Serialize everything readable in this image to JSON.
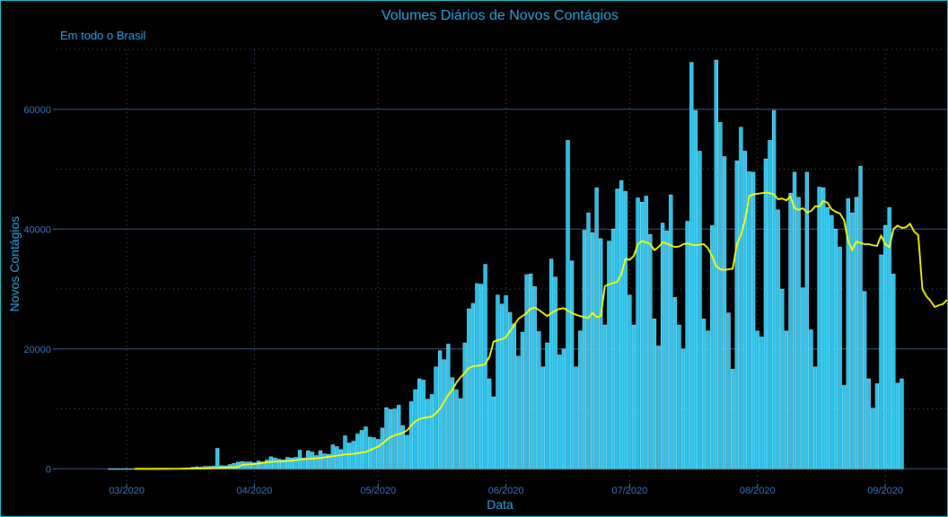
{
  "chart_data": {
    "type": "bar",
    "title": "Volumes Diários de Novos Contágios",
    "subtitle": "Em todo o Brasil",
    "xlabel": "Data",
    "ylabel": "Novos Contágios",
    "x_start": "2020-02-26",
    "ylim": [
      -2500,
      70000
    ],
    "x_ticks": [
      {
        "date": "2020-03-01",
        "label": "03/2020"
      },
      {
        "date": "2020-04-01",
        "label": "04/2020"
      },
      {
        "date": "2020-05-01",
        "label": "05/2020"
      },
      {
        "date": "2020-06-01",
        "label": "06/2020"
      },
      {
        "date": "2020-07-01",
        "label": "07/2020"
      },
      {
        "date": "2020-08-01",
        "label": "08/2020"
      },
      {
        "date": "2020-09-01",
        "label": "09/2020"
      }
    ],
    "y_ticks": [
      0,
      20000,
      40000,
      60000
    ],
    "grid": true,
    "colors": {
      "background": "#000000",
      "bar_fill": "#20c4ee",
      "bar_edge": "#9fe6ff",
      "moving_average": "#ffff00",
      "grid": "#3e5a8a",
      "text": "#2aa7e6",
      "tick": "#3b78c0"
    },
    "series": [
      {
        "type": "bar",
        "values": [
          1,
          0,
          0,
          1,
          1,
          0,
          4,
          0,
          5,
          6,
          5,
          21,
          18,
          27,
          32,
          47,
          55,
          86,
          110,
          148,
          241,
          328,
          256,
          386,
          376,
          425,
          3400,
          500,
          480,
          700,
          900,
          1100,
          1200,
          1130,
          1150,
          1000,
          1300,
          1150,
          1450,
          2000,
          1800,
          1600,
          1500,
          1900,
          1800,
          1900,
          3100,
          1800,
          3000,
          2800,
          2200,
          3000,
          2500,
          2400,
          4000,
          3700,
          3200,
          5500,
          4300,
          4600,
          5800,
          6400,
          7000,
          5300,
          5200,
          4900,
          6800,
          10200,
          9900,
          10000,
          10600,
          7200,
          5600,
          11200,
          13200,
          15000,
          14800,
          11600,
          12400,
          17000,
          19700,
          18200,
          20800,
          15200,
          13200,
          11700,
          21000,
          26700,
          27600,
          30900,
          30800,
          34100,
          15000,
          12000,
          29000,
          27500,
          28900,
          26100,
          24200,
          18800,
          22800,
          32400,
          32500,
          30400,
          22900,
          17000,
          21000,
          35000,
          32000,
          19000,
          20000,
          54800,
          34700,
          17000,
          23000,
          39800,
          42700,
          39400,
          46900,
          38400,
          24000,
          38000,
          40000,
          46700,
          48100,
          46300,
          29000,
          24000,
          45200,
          44500,
          45500,
          39100,
          25000,
          20500,
          41000,
          39700,
          45700,
          28600,
          24000,
          20000,
          41300,
          67800,
          59800,
          53000,
          25000,
          23000,
          40600,
          68200,
          57800,
          52100,
          26000,
          16600,
          51400,
          57000,
          53000,
          49600,
          49500,
          23000,
          22000,
          51700,
          54800,
          59800,
          43200,
          30000,
          23000,
          46000,
          49500,
          45300,
          30200,
          49500,
          23200,
          17000,
          47000,
          46900,
          43600,
          42300,
          40000,
          37000,
          13900,
          45100,
          42700,
          45300,
          50500,
          29600,
          15000,
          10100,
          14200,
          35700,
          40600,
          43600,
          32500,
          14300,
          15000
        ]
      },
      {
        "type": "line",
        "name": "moving-average",
        "start_day": 6,
        "values": [
          0,
          0,
          0,
          0,
          0,
          0,
          1,
          2,
          3,
          5,
          8,
          12,
          17,
          24,
          32,
          42,
          55,
          70,
          90,
          113,
          140,
          170,
          200,
          230,
          260,
          290,
          650,
          700,
          750,
          800,
          900,
          1000,
          1100,
          1150,
          1200,
          1220,
          1250,
          1300,
          1350,
          1450,
          1550,
          1600,
          1650,
          1700,
          1750,
          1800,
          1900,
          2000,
          2100,
          2200,
          2300,
          2400,
          2450,
          2500,
          2600,
          2700,
          2800,
          3100,
          3400,
          3700,
          4200,
          4800,
          5300,
          5600,
          5800,
          6000,
          6400,
          7200,
          7900,
          8300,
          8500,
          8600,
          8700,
          9300,
          10000,
          11200,
          12300,
          13200,
          14400,
          15300,
          16000,
          16800,
          17100,
          17200,
          17300,
          17500,
          18700,
          21200,
          21500,
          21600,
          22000,
          23000,
          24000,
          25000,
          25500,
          26000,
          26700,
          26900,
          26500,
          26000,
          25500,
          26000,
          26400,
          26700,
          26800,
          26400,
          26000,
          25700,
          25500,
          25300,
          25200,
          26000,
          25300,
          25500,
          30500,
          30800,
          31000,
          31200,
          32500,
          35000,
          34900,
          35500,
          37500,
          38000,
          37800,
          37500,
          36500,
          37000,
          37800,
          37600,
          37300,
          37000,
          37100,
          37500,
          37600,
          37400,
          37300,
          37400,
          37500,
          36800,
          35500,
          33800,
          33300,
          33200,
          33300,
          33400,
          37500,
          39000,
          41500,
          45500,
          45800,
          45900,
          46000,
          46100,
          46000,
          45800,
          45000,
          45100,
          44800,
          45500,
          43500,
          43200,
          43500,
          42800,
          43000,
          43800,
          43800,
          44700,
          44400,
          43300,
          42900,
          42600,
          41500,
          38000,
          36500,
          37900,
          37700,
          37500,
          37500,
          37300,
          37200,
          38900,
          37500,
          37000,
          40000,
          40600,
          40200,
          40300,
          40900,
          39600,
          39000,
          30000,
          28800,
          28000,
          27000,
          27300,
          27500,
          28200
        ]
      }
    ]
  }
}
